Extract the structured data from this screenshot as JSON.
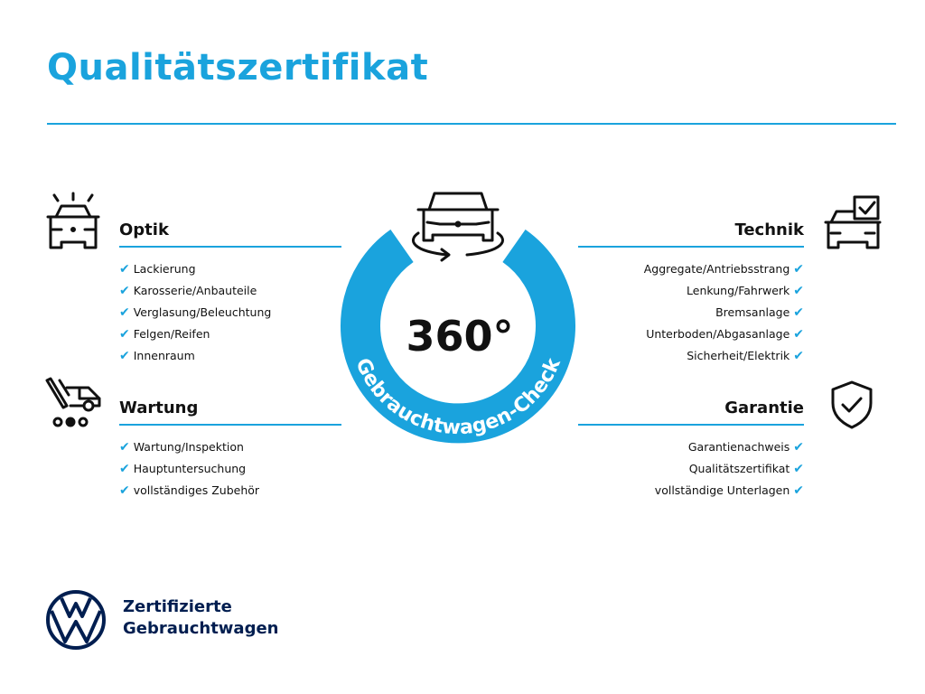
{
  "title": "Qualitätszertifikat",
  "colors": {
    "accent": "#1aa3dd",
    "brand_navy": "#001e50",
    "text": "#111111"
  },
  "badge": {
    "number": "360°",
    "ring_text": "Gebrauchtwagen-Check",
    "icon": "car-rotate-icon"
  },
  "sections": {
    "optik": {
      "heading": "Optik",
      "icon": "car-lights-icon",
      "items": [
        "Lackierung",
        "Karosserie/Anbauteile",
        "Verglasung/Beleuchtung",
        "Felgen/Reifen",
        "Innenraum"
      ]
    },
    "wartung": {
      "heading": "Wartung",
      "icon": "service-van-icon",
      "items": [
        "Wartung/Inspektion",
        "Hauptuntersuchung",
        "vollständiges Zubehör"
      ]
    },
    "technik": {
      "heading": "Technik",
      "icon": "car-checklist-icon",
      "items": [
        "Aggregate/Antriebsstrang",
        "Lenkung/Fahrwerk",
        "Bremsanlage",
        "Unterboden/Abgasanlage",
        "Sicherheit/Elektrik"
      ]
    },
    "garantie": {
      "heading": "Garantie",
      "icon": "shield-check-icon",
      "items": [
        "Garantienachweis",
        "Qualitätszertifikat",
        "vollständige Unterlagen"
      ]
    }
  },
  "check_mark": "✔",
  "footer": {
    "line1": "Zertifizierte",
    "line2": "Gebrauchtwagen",
    "logo": "VW"
  }
}
